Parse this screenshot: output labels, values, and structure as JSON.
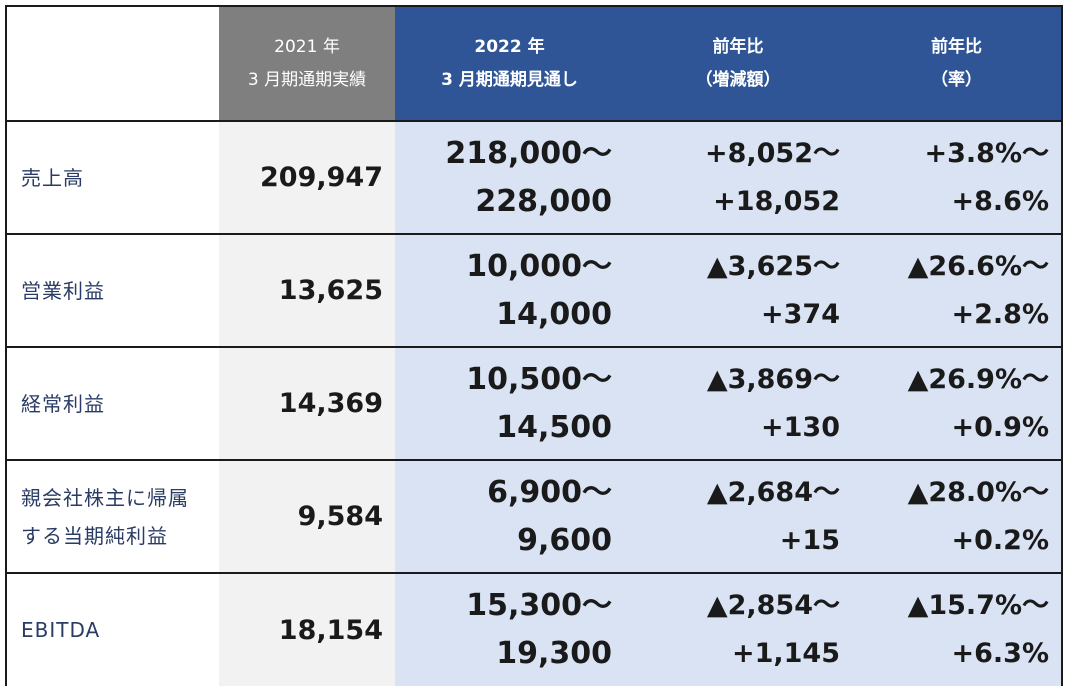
{
  "header": {
    "col_2021": [
      "2021 年",
      "3 月期通期実績"
    ],
    "col_2022": [
      "2022 年",
      "3 月期通期見通し"
    ],
    "col_diff": [
      "前年比",
      "（増減額）"
    ],
    "col_rate": [
      "前年比",
      "（率）"
    ]
  },
  "rows": [
    {
      "label": [
        "売上高"
      ],
      "actual": "209,947",
      "forecast": [
        "218,000～",
        "228,000"
      ],
      "diff": [
        "+8,052～",
        "+18,052"
      ],
      "rate": [
        "+3.8%～",
        "+8.6%"
      ]
    },
    {
      "label": [
        "営業利益"
      ],
      "actual": "13,625",
      "forecast": [
        "10,000～",
        "14,000"
      ],
      "diff": [
        "▲3,625～",
        "+374"
      ],
      "rate": [
        "▲26.6%～",
        "+2.8%"
      ]
    },
    {
      "label": [
        "経常利益"
      ],
      "actual": "14,369",
      "forecast": [
        "10,500～",
        "14,500"
      ],
      "diff": [
        "▲3,869～",
        "+130"
      ],
      "rate": [
        "▲26.9%～",
        "+0.9%"
      ]
    },
    {
      "label": [
        "親会社株主に帰属",
        "する当期純利益"
      ],
      "actual": "9,584",
      "forecast": [
        "6,900～",
        "9,600"
      ],
      "diff": [
        "▲2,684～",
        "+15"
      ],
      "rate": [
        "▲28.0%～",
        "+0.2%"
      ]
    },
    {
      "label": [
        "EBITDA"
      ],
      "actual": "18,154",
      "forecast": [
        "15,300～",
        "19,300"
      ],
      "diff": [
        "▲2,854～",
        "+1,145"
      ],
      "rate": [
        "▲15.7%～",
        "+6.3%"
      ]
    }
  ],
  "colors": {
    "header_prev": "#7f7f7f",
    "header_navy": "#2f5597",
    "cell_actual": "#f2f2f2",
    "cell_forecast": "#dae3f3",
    "label_text": "#2a3c66"
  }
}
